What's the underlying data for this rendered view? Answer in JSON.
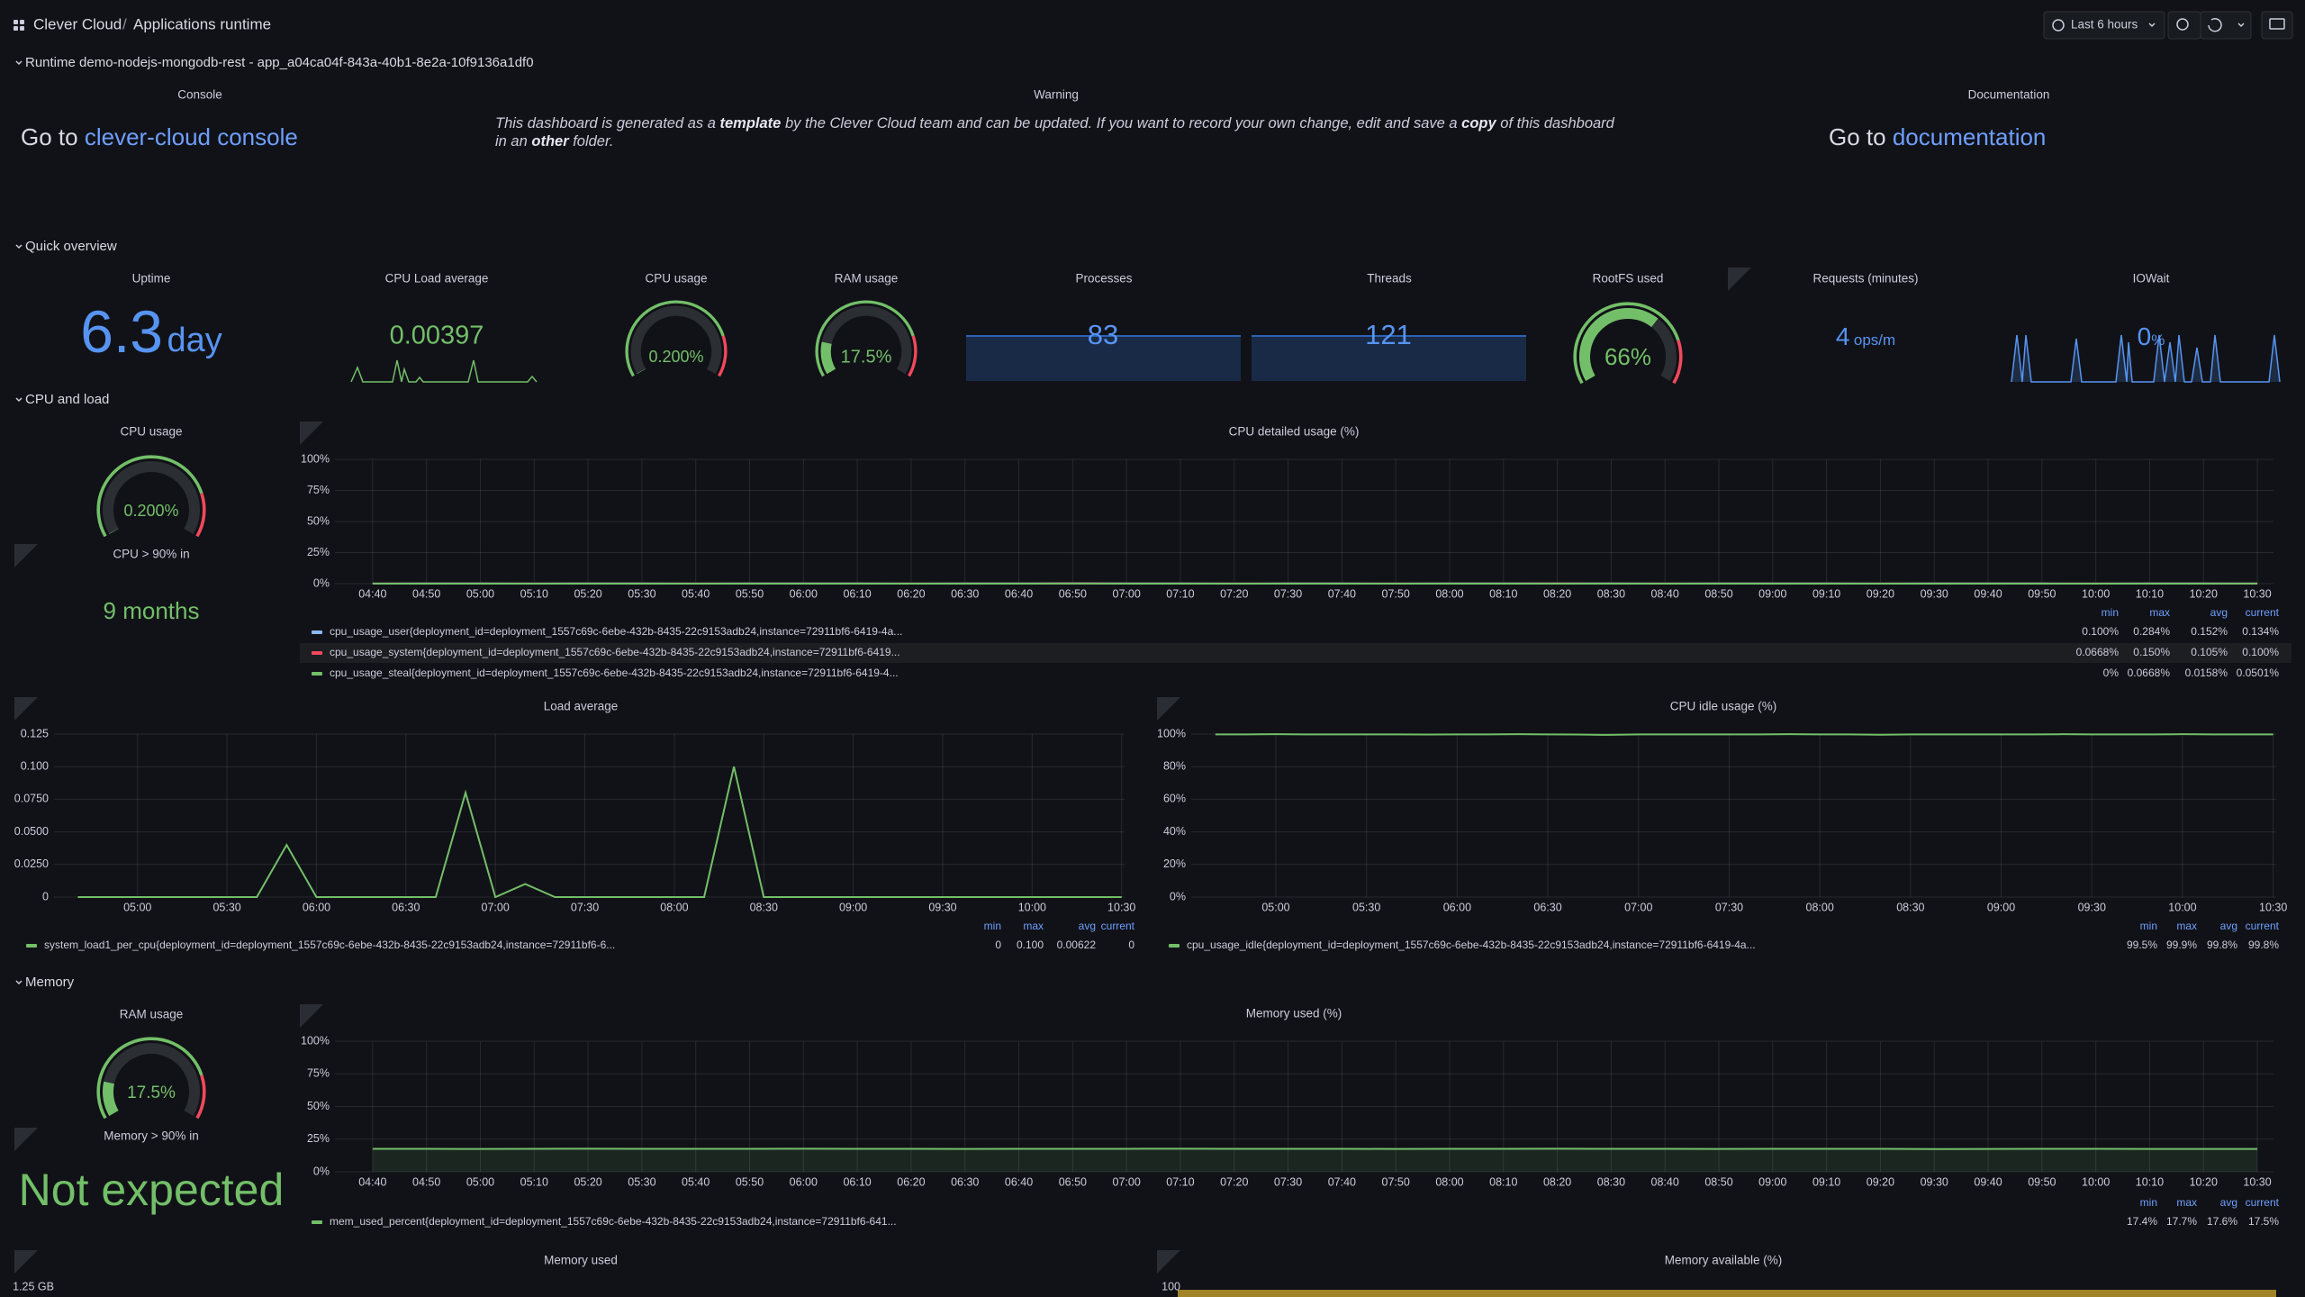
{
  "header": {
    "org": "Clever Cloud",
    "separator": "/",
    "title": "Applications runtime",
    "time_range": "Last 6 hours"
  },
  "gauge_threshold": {
    "value": 80,
    "color": "#f2495c",
    "base_color": "#73bf69",
    "track_color": "#2b2e33"
  },
  "runtime": {
    "title": "Runtime demo-nodejs-mongodb-rest - app_a04ca04f-843a-40b1-8e2a-10f9136a1df0",
    "console": {
      "title": "Console",
      "prefix": "Go to",
      "link": "clever-cloud console"
    },
    "warning": {
      "title": "Warning",
      "parts": [
        "This dashboard is generated as a ",
        "template",
        " by the Clever Cloud team and can be updated. If you want to record your own change, edit and save a ",
        "copy",
        " of this dashboard in an ",
        "other",
        " folder."
      ]
    },
    "documentation": {
      "title": "Documentation",
      "prefix": "Go to",
      "link": "documentation"
    }
  },
  "quick_overview": {
    "title": "Quick overview",
    "panels": [
      {
        "title": "Uptime",
        "value": 6.3,
        "unit": "day"
      },
      {
        "title": "CPU Load average",
        "value": 0.00397
      },
      {
        "title": "CPU usage",
        "kind": "gauge",
        "value": 0.2,
        "value_label": "0.200%",
        "range": [
          0,
          100
        ]
      },
      {
        "title": "RAM usage",
        "kind": "gauge",
        "value": 17.5,
        "value_label": "17.5%",
        "range": [
          0,
          100
        ]
      },
      {
        "title": "Processes",
        "value": 83
      },
      {
        "title": "Threads",
        "value": 121
      },
      {
        "title": "RootFS used",
        "kind": "gauge",
        "value": 66,
        "value_label": "66%",
        "range": [
          0,
          100
        ]
      },
      {
        "title": "Requests (minutes)",
        "value": 4,
        "unit": "ops/m"
      },
      {
        "title": "IOWait",
        "value": 0,
        "unit": "%"
      }
    ]
  },
  "cpu_and_load": {
    "title": "CPU and load",
    "gauge": {
      "title": "CPU usage",
      "value": 0.2,
      "value_label": "0.200%",
      "range": [
        0,
        100
      ]
    },
    "forecast": {
      "title": "CPU > 90% in",
      "value": "9 months"
    },
    "charts": [
      {
        "type": "line",
        "title": "CPU detailed usage (%)",
        "x": [
          "04:40",
          "04:50",
          "05:00",
          "05:10",
          "05:20",
          "05:30",
          "05:40",
          "05:50",
          "06:00",
          "06:10",
          "06:20",
          "06:30",
          "06:40",
          "06:50",
          "07:00",
          "07:10",
          "07:20",
          "07:30",
          "07:40",
          "07:50",
          "08:00",
          "08:10",
          "08:20",
          "08:30",
          "08:40",
          "08:50",
          "09:00",
          "09:10",
          "09:20",
          "09:30",
          "09:40",
          "09:50",
          "10:00",
          "10:10",
          "10:20",
          "10:30"
        ],
        "xlim": [
          "04:33",
          "10:33"
        ],
        "xticks": [
          "04:40",
          "04:50",
          "05:00",
          "05:10",
          "05:20",
          "05:30",
          "05:40",
          "05:50",
          "06:00",
          "06:10",
          "06:20",
          "06:30",
          "06:40",
          "06:50",
          "07:00",
          "07:10",
          "07:20",
          "07:30",
          "07:40",
          "07:50",
          "08:00",
          "08:10",
          "08:20",
          "08:30",
          "08:40",
          "08:50",
          "09:00",
          "09:10",
          "09:20",
          "09:30",
          "09:40",
          "09:50",
          "10:00",
          "10:10",
          "10:20",
          "10:30"
        ],
        "ylim": [
          0,
          100
        ],
        "yticks": [
          {
            "value": 0,
            "label": "0%"
          },
          {
            "value": 25,
            "label": "25%"
          },
          {
            "value": 50,
            "label": "50%"
          },
          {
            "value": 75,
            "label": "75%"
          },
          {
            "value": 100,
            "label": "100%"
          }
        ],
        "grid": true,
        "legend_columns": [
          "min",
          "max",
          "avg",
          "current"
        ],
        "series": [
          {
            "name": "cpu_usage_user{deployment_id=deployment_1557c69c-6ebe-432b-8435-22c9153adb24,instance=72911bf6-6419-4a...",
            "color": "#8ab8ff",
            "values": [
              0.13,
              0.14,
              0.15,
              0.12,
              0.16,
              0.14,
              0.13,
              0.2,
              0.15,
              0.14,
              0.13,
              0.15,
              0.18,
              0.284,
              0.14,
              0.16,
              0.13,
              0.14,
              0.15,
              0.12,
              0.14,
              0.16,
              0.22,
              0.15,
              0.13,
              0.14,
              0.15,
              0.14,
              0.13,
              0.16,
              0.14,
              0.15,
              0.1,
              0.14,
              0.15,
              0.134
            ],
            "stats": [
              "0.100%",
              "0.284%",
              "0.152%",
              "0.134%"
            ]
          },
          {
            "name": "cpu_usage_system{deployment_id=deployment_1557c69c-6ebe-432b-8435-22c9153adb24,instance=72911bf6-6419...",
            "color": "#f2495c",
            "values": [
              0.1,
              0.11,
              0.1,
              0.09,
              0.12,
              0.1,
              0.1,
              0.13,
              0.11,
              0.1,
              0.09,
              0.1,
              0.12,
              0.15,
              0.1,
              0.11,
              0.1,
              0.1,
              0.11,
              0.09,
              0.1,
              0.11,
              0.14,
              0.1,
              0.1,
              0.1,
              0.11,
              0.1,
              0.0668,
              0.11,
              0.1,
              0.1,
              0.09,
              0.1,
              0.11,
              0.1
            ],
            "stats": [
              "0.0668%",
              "0.150%",
              "0.105%",
              "0.100%"
            ]
          },
          {
            "name": "cpu_usage_steal{deployment_id=deployment_1557c69c-6ebe-432b-8435-22c9153adb24,instance=72911bf6-6419-4...",
            "color": "#73bf69",
            "values": [
              0.01,
              0.02,
              0,
              0.01,
              0.02,
              0.01,
              0.01,
              0.03,
              0.02,
              0.01,
              0,
              0.01,
              0.02,
              0.0668,
              0.01,
              0.02,
              0.01,
              0.01,
              0.02,
              0,
              0.01,
              0.02,
              0.04,
              0.01,
              0.01,
              0.01,
              0.02,
              0.01,
              0,
              0.02,
              0.01,
              0.01,
              0,
              0.01,
              0.02,
              0.0501
            ],
            "stats": [
              "0%",
              "0.0668%",
              "0.0158%",
              "0.0501%"
            ]
          }
        ]
      },
      {
        "type": "line",
        "title": "Load average",
        "x": [
          "04:40",
          "04:50",
          "05:00",
          "05:10",
          "05:20",
          "05:30",
          "05:40",
          "05:50",
          "06:00",
          "06:10",
          "06:20",
          "06:30",
          "06:40",
          "06:50",
          "07:00",
          "07:10",
          "07:20",
          "07:30",
          "07:40",
          "07:50",
          "08:00",
          "08:10",
          "08:20",
          "08:30",
          "08:40",
          "08:50",
          "09:00",
          "09:10",
          "09:20",
          "09:30",
          "09:40",
          "09:50",
          "10:00",
          "10:10",
          "10:20",
          "10:30"
        ],
        "xlim": [
          "04:32",
          "10:31"
        ],
        "xticks": [
          "05:00",
          "05:30",
          "06:00",
          "06:30",
          "07:00",
          "07:30",
          "08:00",
          "08:30",
          "09:00",
          "09:30",
          "10:00",
          "10:30"
        ],
        "ylim": [
          0,
          0.125
        ],
        "yticks": [
          0,
          {
            "value": 0.025,
            "label": "0.0250"
          },
          {
            "value": 0.05,
            "label": "0.0500"
          },
          {
            "value": 0.075,
            "label": "0.0750"
          },
          {
            "value": 0.1,
            "label": "0.100"
          },
          0.125
        ],
        "grid": true,
        "legend_columns": [
          "min",
          "max",
          "avg",
          "current"
        ],
        "series": [
          {
            "name": "system_load1_per_cpu{deployment_id=deployment_1557c69c-6ebe-432b-8435-22c9153adb24,instance=72911bf6-6...",
            "color": "#73bf69",
            "values": [
              0,
              0,
              0,
              0,
              0,
              0,
              0,
              0.04,
              0,
              0,
              0,
              0,
              0,
              0.08,
              0,
              0.01,
              0,
              0,
              0,
              0,
              0,
              0,
              0.1,
              0,
              0,
              0,
              0,
              0,
              0,
              0,
              0,
              0,
              0,
              0,
              0,
              0
            ],
            "stats": [
              "0",
              "0.100",
              "0.00622",
              "0"
            ]
          }
        ]
      },
      {
        "type": "line",
        "title": "CPU idle usage (%)",
        "x": [
          "04:40",
          "04:50",
          "05:00",
          "05:10",
          "05:20",
          "05:30",
          "05:40",
          "05:50",
          "06:00",
          "06:10",
          "06:20",
          "06:30",
          "06:40",
          "06:50",
          "07:00",
          "07:10",
          "07:20",
          "07:30",
          "07:40",
          "07:50",
          "08:00",
          "08:10",
          "08:20",
          "08:30",
          "08:40",
          "08:50",
          "09:00",
          "09:10",
          "09:20",
          "09:30",
          "09:40",
          "09:50",
          "10:00",
          "10:10",
          "10:20",
          "10:30"
        ],
        "xlim": [
          "04:32",
          "10:31"
        ],
        "xticks": [
          "05:00",
          "05:30",
          "06:00",
          "06:30",
          "07:00",
          "07:30",
          "08:00",
          "08:30",
          "09:00",
          "09:30",
          "10:00",
          "10:30"
        ],
        "ylim": [
          0,
          100
        ],
        "yticks": [
          {
            "value": 0,
            "label": "0%"
          },
          {
            "value": 20,
            "label": "20%"
          },
          {
            "value": 40,
            "label": "40%"
          },
          {
            "value": 60,
            "label": "60%"
          },
          {
            "value": 80,
            "label": "80%"
          },
          {
            "value": 100,
            "label": "100%"
          }
        ],
        "grid": true,
        "legend_columns": [
          "min",
          "max",
          "avg",
          "current"
        ],
        "series": [
          {
            "name": "cpu_usage_idle{deployment_id=deployment_1557c69c-6ebe-432b-8435-22c9153adb24,instance=72911bf6-6419-4a...",
            "color": "#73bf69",
            "values": [
              99.8,
              99.8,
              99.9,
              99.8,
              99.8,
              99.8,
              99.8,
              99.7,
              99.8,
              99.8,
              99.9,
              99.8,
              99.7,
              99.5,
              99.8,
              99.8,
              99.8,
              99.8,
              99.8,
              99.9,
              99.8,
              99.8,
              99.6,
              99.8,
              99.8,
              99.8,
              99.8,
              99.8,
              99.9,
              99.8,
              99.8,
              99.8,
              99.9,
              99.8,
              99.8,
              99.8
            ],
            "stats": [
              "99.5%",
              "99.9%",
              "99.8%",
              "99.8%"
            ]
          }
        ]
      }
    ]
  },
  "memory": {
    "title": "Memory",
    "gauge": {
      "title": "RAM usage",
      "value": 17.5,
      "value_label": "17.5%",
      "range": [
        0,
        100
      ]
    },
    "forecast": {
      "title": "Memory > 90% in",
      "value": "Not expected"
    },
    "charts": [
      {
        "type": "line",
        "title": "Memory used (%)",
        "area": true,
        "x": [
          "04:40",
          "04:50",
          "05:00",
          "05:10",
          "05:20",
          "05:30",
          "05:40",
          "05:50",
          "06:00",
          "06:10",
          "06:20",
          "06:30",
          "06:40",
          "06:50",
          "07:00",
          "07:10",
          "07:20",
          "07:30",
          "07:40",
          "07:50",
          "08:00",
          "08:10",
          "08:20",
          "08:30",
          "08:40",
          "08:50",
          "09:00",
          "09:10",
          "09:20",
          "09:30",
          "09:40",
          "09:50",
          "10:00",
          "10:10",
          "10:20",
          "10:30"
        ],
        "xlim": [
          "04:33",
          "10:33"
        ],
        "xticks": [
          "04:40",
          "04:50",
          "05:00",
          "05:10",
          "05:20",
          "05:30",
          "05:40",
          "05:50",
          "06:00",
          "06:10",
          "06:20",
          "06:30",
          "06:40",
          "06:50",
          "07:00",
          "07:10",
          "07:20",
          "07:30",
          "07:40",
          "07:50",
          "08:00",
          "08:10",
          "08:20",
          "08:30",
          "08:40",
          "08:50",
          "09:00",
          "09:10",
          "09:20",
          "09:30",
          "09:40",
          "09:50",
          "10:00",
          "10:10",
          "10:20",
          "10:30"
        ],
        "ylim": [
          0,
          100
        ],
        "yticks": [
          {
            "value": 0,
            "label": "0%"
          },
          {
            "value": 25,
            "label": "25%"
          },
          {
            "value": 50,
            "label": "50%"
          },
          {
            "value": 75,
            "label": "75%"
          },
          {
            "value": 100,
            "label": "100%"
          }
        ],
        "grid": true,
        "legend_columns": [
          "min",
          "max",
          "avg",
          "current"
        ],
        "series": [
          {
            "name": "mem_used_percent{deployment_id=deployment_1557c69c-6ebe-432b-8435-22c9153adb24,instance=72911bf6-641...",
            "color": "#73bf69",
            "values": [
              17.6,
              17.6,
              17.5,
              17.6,
              17.7,
              17.6,
              17.6,
              17.6,
              17.7,
              17.6,
              17.6,
              17.5,
              17.6,
              17.6,
              17.6,
              17.7,
              17.6,
              17.6,
              17.6,
              17.5,
              17.6,
              17.6,
              17.7,
              17.6,
              17.6,
              17.5,
              17.6,
              17.6,
              17.6,
              17.4,
              17.5,
              17.6,
              17.6,
              17.5,
              17.5,
              17.5
            ],
            "stats": [
              "17.4%",
              "17.7%",
              "17.6%",
              "17.5%"
            ]
          }
        ]
      }
    ],
    "panels": [
      {
        "title": "Memory used",
        "top_tick": "1.25 GB"
      },
      {
        "title": "Memory available (%)",
        "top_tick": 100
      }
    ]
  }
}
